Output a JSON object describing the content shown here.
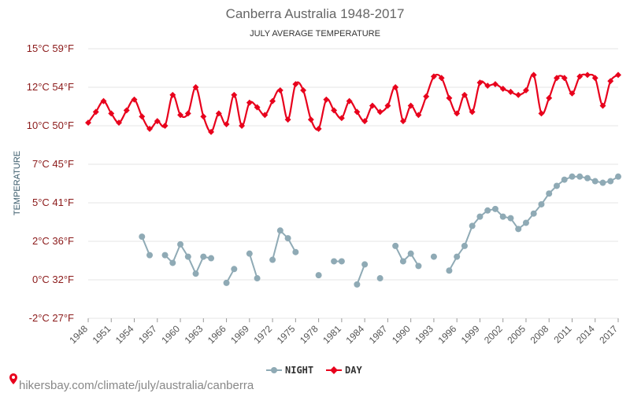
{
  "chart_data": {
    "type": "line",
    "title": "Canberra Australia 1948-2017",
    "subtitle": "JULY AVERAGE TEMPERATURE",
    "ylabel": "TEMPERATURE",
    "ylim_c": [
      -2,
      15
    ],
    "y_ticks": [
      {
        "c": 15,
        "label": "15°C 59°F"
      },
      {
        "c": 12.5,
        "label": "12°C 54°F"
      },
      {
        "c": 10,
        "label": "10°C 50°F"
      },
      {
        "c": 7.5,
        "label": "7°C 45°F"
      },
      {
        "c": 5,
        "label": "5°C 41°F"
      },
      {
        "c": 2.5,
        "label": "2°C 36°F"
      },
      {
        "c": 0,
        "label": "0°C 32°F"
      },
      {
        "c": -2.5,
        "label": "-2°C 27°F"
      }
    ],
    "x_ticks": [
      1948,
      1951,
      1954,
      1957,
      1960,
      1963,
      1966,
      1969,
      1972,
      1975,
      1978,
      1981,
      1984,
      1987,
      1990,
      1993,
      1996,
      1999,
      2002,
      2005,
      2008,
      2011,
      2014,
      2017
    ],
    "x_range": [
      1948,
      2017
    ],
    "series": [
      {
        "name": "NIGHT",
        "color": "#8faab5",
        "points": [
          [
            1955,
            2.8
          ],
          [
            1956,
            1.6
          ],
          [
            1958,
            1.6
          ],
          [
            1959,
            1.1
          ],
          [
            1960,
            2.3
          ],
          [
            1961,
            1.5
          ],
          [
            1962,
            0.4
          ],
          [
            1963,
            1.5
          ],
          [
            1964,
            1.4
          ],
          [
            1966,
            -0.2
          ],
          [
            1967,
            0.7
          ],
          [
            1969,
            1.7
          ],
          [
            1970,
            0.1
          ],
          [
            1972,
            1.3
          ],
          [
            1973,
            3.2
          ],
          [
            1974,
            2.7
          ],
          [
            1975,
            1.8
          ],
          [
            1978,
            0.3
          ],
          [
            1980,
            1.2
          ],
          [
            1981,
            1.2
          ],
          [
            1983,
            -0.3
          ],
          [
            1984,
            1.0
          ],
          [
            1986,
            0.1
          ],
          [
            1988,
            2.2
          ],
          [
            1989,
            1.2
          ],
          [
            1990,
            1.7
          ],
          [
            1991,
            0.9
          ],
          [
            1993,
            1.5
          ],
          [
            1995,
            0.6
          ],
          [
            1996,
            1.5
          ],
          [
            1997,
            2.2
          ],
          [
            1998,
            3.5
          ],
          [
            1999,
            4.1
          ],
          [
            2000,
            4.5
          ],
          [
            2001,
            4.6
          ],
          [
            2002,
            4.1
          ],
          [
            2003,
            4.0
          ],
          [
            2004,
            3.3
          ],
          [
            2005,
            3.7
          ],
          [
            2006,
            4.3
          ],
          [
            2007,
            4.9
          ],
          [
            2008,
            5.6
          ],
          [
            2009,
            6.1
          ],
          [
            2010,
            6.5
          ],
          [
            2011,
            6.7
          ],
          [
            2012,
            6.7
          ],
          [
            2013,
            6.6
          ],
          [
            2014,
            6.4
          ],
          [
            2015,
            6.3
          ],
          [
            2016,
            6.4
          ],
          [
            2017,
            6.7
          ]
        ]
      },
      {
        "name": "DAY",
        "color": "#e8001c",
        "points": [
          [
            1948,
            10.2
          ],
          [
            1949,
            10.9
          ],
          [
            1950,
            11.6
          ],
          [
            1951,
            10.8
          ],
          [
            1952,
            10.2
          ],
          [
            1953,
            11.0
          ],
          [
            1954,
            11.7
          ],
          [
            1955,
            10.6
          ],
          [
            1956,
            9.8
          ],
          [
            1957,
            10.3
          ],
          [
            1958,
            10.0
          ],
          [
            1959,
            12.0
          ],
          [
            1960,
            10.7
          ],
          [
            1961,
            10.8
          ],
          [
            1962,
            12.5
          ],
          [
            1963,
            10.6
          ],
          [
            1964,
            9.6
          ],
          [
            1965,
            10.8
          ],
          [
            1966,
            10.1
          ],
          [
            1967,
            12.0
          ],
          [
            1968,
            10.0
          ],
          [
            1969,
            11.5
          ],
          [
            1970,
            11.2
          ],
          [
            1971,
            10.7
          ],
          [
            1972,
            11.6
          ],
          [
            1973,
            12.3
          ],
          [
            1974,
            10.4
          ],
          [
            1975,
            12.7
          ],
          [
            1976,
            12.3
          ],
          [
            1977,
            10.4
          ],
          [
            1978,
            9.8
          ],
          [
            1979,
            11.7
          ],
          [
            1980,
            11.0
          ],
          [
            1981,
            10.5
          ],
          [
            1982,
            11.6
          ],
          [
            1983,
            10.9
          ],
          [
            1984,
            10.3
          ],
          [
            1985,
            11.3
          ],
          [
            1986,
            10.9
          ],
          [
            1987,
            11.3
          ],
          [
            1988,
            12.5
          ],
          [
            1989,
            10.3
          ],
          [
            1990,
            11.3
          ],
          [
            1991,
            10.7
          ],
          [
            1992,
            11.9
          ],
          [
            1993,
            13.2
          ],
          [
            1994,
            13.1
          ],
          [
            1995,
            11.8
          ],
          [
            1996,
            10.8
          ],
          [
            1997,
            12.0
          ],
          [
            1998,
            10.9
          ],
          [
            1999,
            12.8
          ],
          [
            2000,
            12.6
          ],
          [
            2001,
            12.7
          ],
          [
            2002,
            12.4
          ],
          [
            2003,
            12.2
          ],
          [
            2004,
            12.0
          ],
          [
            2005,
            12.3
          ],
          [
            2006,
            13.3
          ],
          [
            2007,
            10.8
          ],
          [
            2008,
            11.8
          ],
          [
            2009,
            13.1
          ],
          [
            2010,
            13.1
          ],
          [
            2011,
            12.1
          ],
          [
            2012,
            13.2
          ],
          [
            2013,
            13.3
          ],
          [
            2014,
            13.1
          ],
          [
            2015,
            11.3
          ],
          [
            2016,
            12.9
          ],
          [
            2017,
            13.3
          ]
        ]
      }
    ],
    "legend": {
      "placement": "bottom-center",
      "items": [
        "NIGHT",
        "DAY"
      ]
    },
    "grid": true
  },
  "watermark": "hikersbay.com/climate/july/australia/canberra"
}
